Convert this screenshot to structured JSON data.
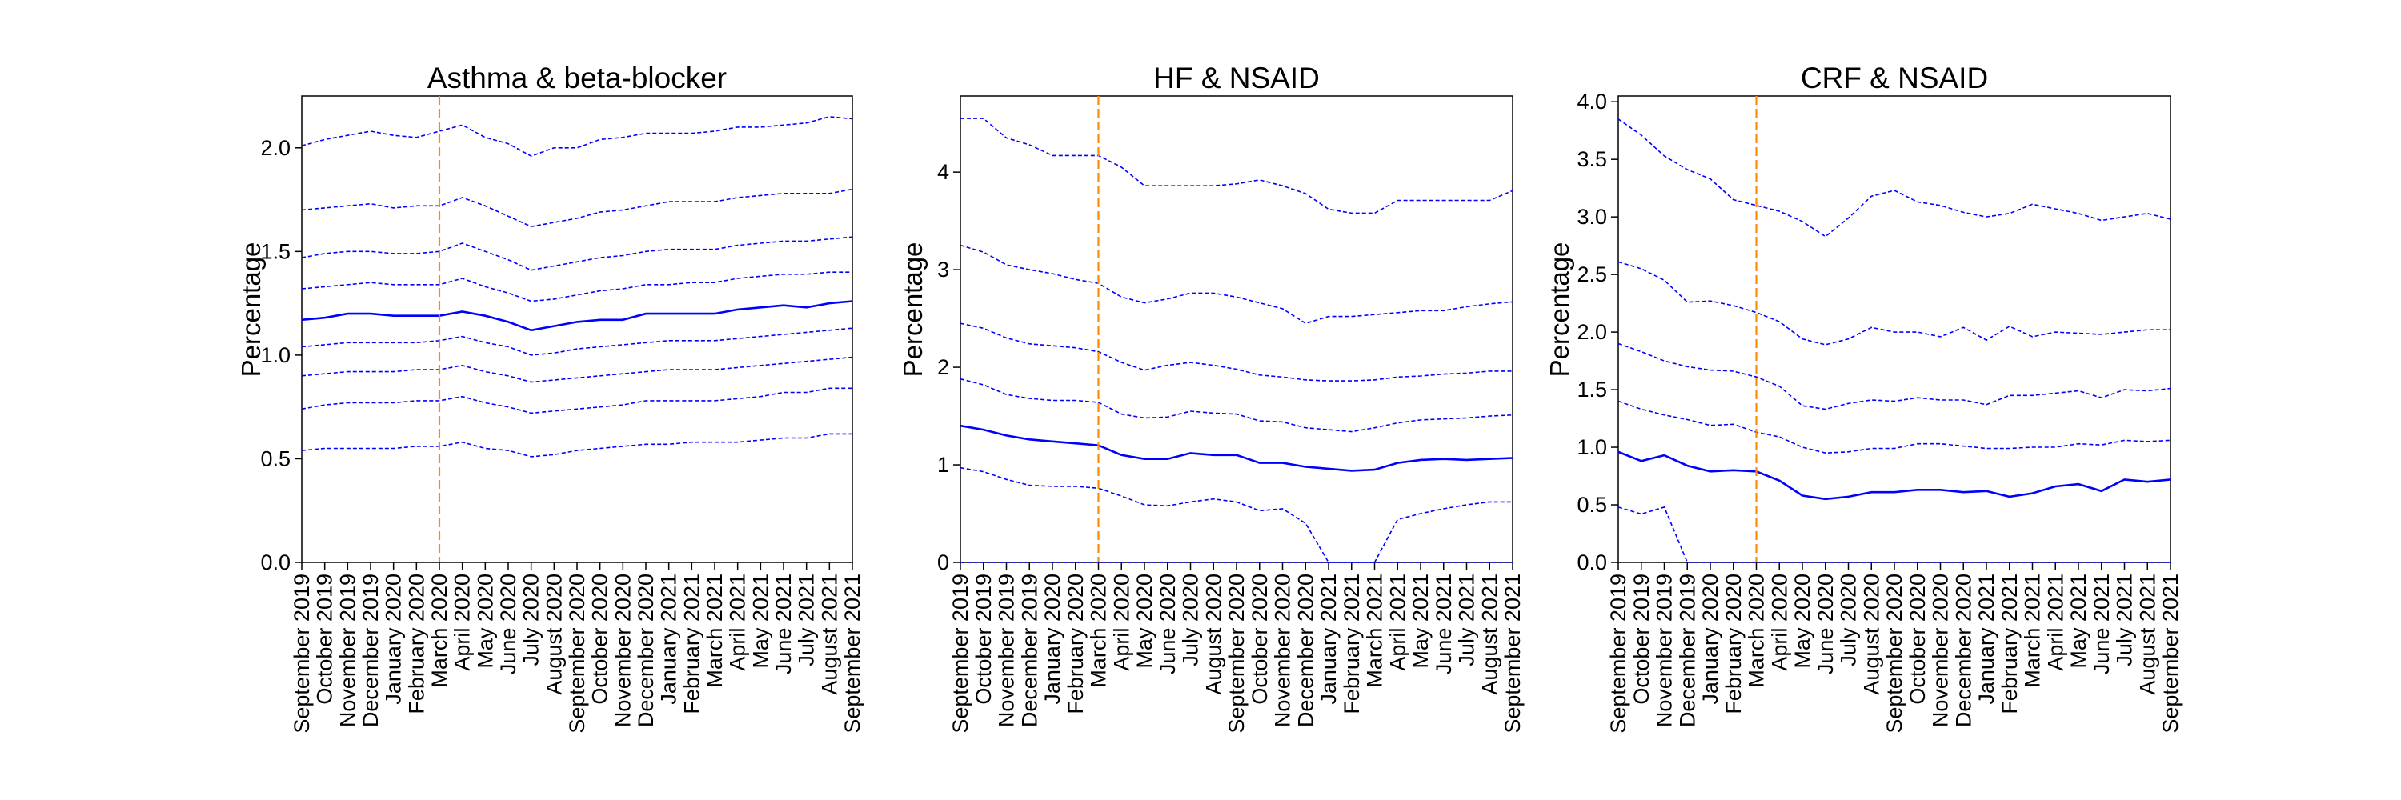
{
  "months": [
    "September 2019",
    "October 2019",
    "November 2019",
    "December 2019",
    "January 2020",
    "February 2020",
    "March 2020",
    "April 2020",
    "May 2020",
    "June 2020",
    "July 2020",
    "August 2020",
    "September 2020",
    "October 2020",
    "November 2020",
    "December 2020",
    "January 2021",
    "February 2021",
    "March 2021",
    "April 2021",
    "May 2021",
    "June 2021",
    "July 2021",
    "August 2021",
    "September 2021"
  ],
  "colors": {
    "series": "#0000ff",
    "vline": "#ff8c00",
    "axis": "#000000"
  },
  "chart_data": [
    {
      "type": "line",
      "title": "Asthma & beta-blocker",
      "ylabel": "Percentage",
      "ylim": [
        0,
        2.25
      ],
      "yticks": [
        "0.0",
        "0.5",
        "1.0",
        "1.5",
        "2.0"
      ],
      "ytick_values": [
        0,
        0.5,
        1.0,
        1.5,
        2.0
      ],
      "vline_x": "March 2020",
      "series": [
        {
          "style": "dashed",
          "values": [
            0.54,
            0.55,
            0.55,
            0.55,
            0.55,
            0.56,
            0.56,
            0.58,
            0.55,
            0.54,
            0.51,
            0.52,
            0.54,
            0.55,
            0.56,
            0.57,
            0.57,
            0.58,
            0.58,
            0.58,
            0.59,
            0.6,
            0.6,
            0.62,
            0.62
          ]
        },
        {
          "style": "dashed",
          "values": [
            0.74,
            0.76,
            0.77,
            0.77,
            0.77,
            0.78,
            0.78,
            0.8,
            0.77,
            0.75,
            0.72,
            0.73,
            0.74,
            0.75,
            0.76,
            0.78,
            0.78,
            0.78,
            0.78,
            0.79,
            0.8,
            0.82,
            0.82,
            0.84,
            0.84
          ]
        },
        {
          "style": "dashed",
          "values": [
            0.9,
            0.91,
            0.92,
            0.92,
            0.92,
            0.93,
            0.93,
            0.95,
            0.92,
            0.9,
            0.87,
            0.88,
            0.89,
            0.9,
            0.91,
            0.92,
            0.93,
            0.93,
            0.93,
            0.94,
            0.95,
            0.96,
            0.97,
            0.98,
            0.99
          ]
        },
        {
          "style": "dashed",
          "values": [
            1.04,
            1.05,
            1.06,
            1.06,
            1.06,
            1.06,
            1.07,
            1.09,
            1.06,
            1.04,
            1.0,
            1.01,
            1.03,
            1.04,
            1.05,
            1.06,
            1.07,
            1.07,
            1.07,
            1.08,
            1.09,
            1.1,
            1.11,
            1.12,
            1.13
          ]
        },
        {
          "style": "solid",
          "values": [
            1.17,
            1.18,
            1.2,
            1.2,
            1.19,
            1.19,
            1.19,
            1.21,
            1.19,
            1.16,
            1.12,
            1.14,
            1.16,
            1.17,
            1.17,
            1.2,
            1.2,
            1.2,
            1.2,
            1.22,
            1.23,
            1.24,
            1.23,
            1.25,
            1.26
          ]
        },
        {
          "style": "dashed",
          "values": [
            1.32,
            1.33,
            1.34,
            1.35,
            1.34,
            1.34,
            1.34,
            1.37,
            1.33,
            1.3,
            1.26,
            1.27,
            1.29,
            1.31,
            1.32,
            1.34,
            1.34,
            1.35,
            1.35,
            1.37,
            1.38,
            1.39,
            1.39,
            1.4,
            1.4
          ]
        },
        {
          "style": "dashed",
          "values": [
            1.47,
            1.49,
            1.5,
            1.5,
            1.49,
            1.49,
            1.5,
            1.54,
            1.5,
            1.46,
            1.41,
            1.43,
            1.45,
            1.47,
            1.48,
            1.5,
            1.51,
            1.51,
            1.51,
            1.53,
            1.54,
            1.55,
            1.55,
            1.56,
            1.57
          ]
        },
        {
          "style": "dashed",
          "values": [
            1.7,
            1.71,
            1.72,
            1.73,
            1.71,
            1.72,
            1.72,
            1.76,
            1.72,
            1.67,
            1.62,
            1.64,
            1.66,
            1.69,
            1.7,
            1.72,
            1.74,
            1.74,
            1.74,
            1.76,
            1.77,
            1.78,
            1.78,
            1.78,
            1.8
          ]
        },
        {
          "style": "dashed",
          "values": [
            2.01,
            2.04,
            2.06,
            2.08,
            2.06,
            2.05,
            2.08,
            2.11,
            2.05,
            2.02,
            1.96,
            2.0,
            2.0,
            2.04,
            2.05,
            2.07,
            2.07,
            2.07,
            2.08,
            2.1,
            2.1,
            2.11,
            2.12,
            2.15,
            2.14
          ]
        }
      ]
    },
    {
      "type": "line",
      "title": "HF & NSAID",
      "ylabel": "Percentage",
      "ylim": [
        0,
        4.78
      ],
      "yticks": [
        "0",
        "1",
        "2",
        "3",
        "4"
      ],
      "ytick_values": [
        0,
        1,
        2,
        3,
        4
      ],
      "vline_x": "March 2020",
      "series": [
        {
          "style": "dashed",
          "values": [
            0,
            0,
            0,
            0,
            0,
            0,
            0,
            0,
            0,
            0,
            0,
            0,
            0,
            0,
            0,
            0,
            0,
            0,
            0,
            0,
            0,
            0,
            0,
            0,
            0
          ]
        },
        {
          "style": "dashed",
          "values": [
            0.97,
            0.93,
            0.85,
            0.79,
            0.78,
            0.78,
            0.76,
            0.68,
            0.59,
            0.58,
            0.62,
            0.65,
            0.62,
            0.53,
            0.55,
            0.4,
            0.0,
            0.0,
            0.0,
            0.44,
            0.5,
            0.55,
            0.59,
            0.62,
            0.62
          ]
        },
        {
          "style": "solid",
          "values": [
            1.4,
            1.36,
            1.3,
            1.26,
            1.24,
            1.22,
            1.2,
            1.1,
            1.06,
            1.06,
            1.12,
            1.1,
            1.1,
            1.02,
            1.02,
            0.98,
            0.96,
            0.94,
            0.95,
            1.02,
            1.05,
            1.06,
            1.05,
            1.06,
            1.07
          ]
        },
        {
          "style": "dashed",
          "values": [
            1.88,
            1.82,
            1.72,
            1.68,
            1.66,
            1.66,
            1.64,
            1.52,
            1.48,
            1.49,
            1.55,
            1.53,
            1.52,
            1.45,
            1.44,
            1.38,
            1.36,
            1.34,
            1.38,
            1.43,
            1.46,
            1.47,
            1.48,
            1.5,
            1.51
          ]
        },
        {
          "style": "dashed",
          "values": [
            2.45,
            2.4,
            2.3,
            2.24,
            2.22,
            2.2,
            2.16,
            2.05,
            1.97,
            2.02,
            2.05,
            2.02,
            1.98,
            1.92,
            1.9,
            1.87,
            1.86,
            1.86,
            1.87,
            1.9,
            1.91,
            1.93,
            1.94,
            1.96,
            1.96
          ]
        },
        {
          "style": "dashed",
          "values": [
            3.25,
            3.18,
            3.05,
            3.0,
            2.96,
            2.9,
            2.86,
            2.72,
            2.66,
            2.7,
            2.76,
            2.76,
            2.72,
            2.66,
            2.6,
            2.45,
            2.52,
            2.52,
            2.54,
            2.56,
            2.58,
            2.58,
            2.62,
            2.65,
            2.67
          ]
        },
        {
          "style": "dashed",
          "values": [
            4.55,
            4.55,
            4.35,
            4.28,
            4.17,
            4.17,
            4.17,
            4.05,
            3.86,
            3.86,
            3.86,
            3.86,
            3.88,
            3.92,
            3.86,
            3.78,
            3.62,
            3.58,
            3.58,
            3.71,
            3.71,
            3.71,
            3.71,
            3.71,
            3.81
          ]
        }
      ]
    },
    {
      "type": "line",
      "title": "CRF & NSAID",
      "ylabel": "Percentage",
      "ylim": [
        0,
        4.05
      ],
      "yticks": [
        "0.0",
        "0.5",
        "1.0",
        "1.5",
        "2.0",
        "2.5",
        "3.0",
        "3.5",
        "4.0"
      ],
      "ytick_values": [
        0,
        0.5,
        1.0,
        1.5,
        2.0,
        2.5,
        3.0,
        3.5,
        4.0
      ],
      "vline_x": "March 2020",
      "series": [
        {
          "style": "dashed",
          "values": [
            0.48,
            0.42,
            0.48,
            0.0,
            0,
            0,
            0,
            0,
            0,
            0,
            0,
            0,
            0,
            0,
            0,
            0,
            0,
            0,
            0,
            0,
            0,
            0,
            0,
            0,
            0
          ]
        },
        {
          "style": "solid",
          "values": [
            0.96,
            0.88,
            0.93,
            0.84,
            0.79,
            0.8,
            0.79,
            0.71,
            0.58,
            0.55,
            0.57,
            0.61,
            0.61,
            0.63,
            0.63,
            0.61,
            0.62,
            0.57,
            0.6,
            0.66,
            0.68,
            0.62,
            0.72,
            0.7,
            0.72
          ]
        },
        {
          "style": "dashed",
          "values": [
            1.4,
            1.33,
            1.28,
            1.24,
            1.19,
            1.2,
            1.13,
            1.09,
            1.0,
            0.95,
            0.96,
            0.99,
            0.99,
            1.03,
            1.03,
            1.01,
            0.99,
            0.99,
            1.0,
            1.0,
            1.03,
            1.02,
            1.06,
            1.05,
            1.06
          ]
        },
        {
          "style": "dashed",
          "values": [
            1.9,
            1.83,
            1.75,
            1.7,
            1.67,
            1.66,
            1.61,
            1.53,
            1.36,
            1.33,
            1.38,
            1.41,
            1.4,
            1.43,
            1.41,
            1.41,
            1.37,
            1.45,
            1.45,
            1.47,
            1.49,
            1.43,
            1.5,
            1.49,
            1.51
          ]
        },
        {
          "style": "dashed",
          "values": [
            2.61,
            2.55,
            2.45,
            2.26,
            2.27,
            2.23,
            2.17,
            2.09,
            1.94,
            1.89,
            1.94,
            2.04,
            2.0,
            2.0,
            1.96,
            2.04,
            1.93,
            2.05,
            1.96,
            2.0,
            1.99,
            1.98,
            2.0,
            2.02,
            2.02
          ]
        },
        {
          "style": "dashed",
          "values": [
            3.85,
            3.71,
            3.53,
            3.41,
            3.33,
            3.15,
            3.1,
            3.05,
            2.96,
            2.83,
            2.99,
            3.18,
            3.23,
            3.13,
            3.1,
            3.04,
            3.0,
            3.03,
            3.11,
            3.07,
            3.03,
            2.97,
            3.0,
            3.03,
            2.98
          ]
        }
      ]
    }
  ]
}
